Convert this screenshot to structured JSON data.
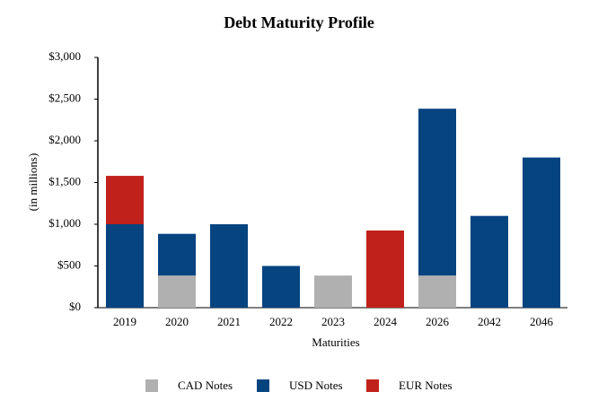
{
  "chart_data": {
    "type": "stacked_bar",
    "title": "Debt Maturity Profile",
    "y_label": "(in millions)",
    "x_label": "Maturities",
    "categories": [
      "2019",
      "2020",
      "2021",
      "2022",
      "2023",
      "2024",
      "2026",
      "2042",
      "2046"
    ],
    "series": [
      {
        "name": "CAD Notes",
        "color": "#b0b0b0",
        "values": [
          null,
          385,
          null,
          null,
          385,
          null,
          385,
          null,
          null
        ]
      },
      {
        "name": "USD Notes",
        "color": "#064480",
        "values": [
          1000,
          500,
          1000,
          500,
          null,
          null,
          2000,
          1100,
          1800
        ]
      },
      {
        "name": "EUR Notes",
        "color": "#c0211a",
        "values": [
          580,
          null,
          null,
          null,
          null,
          925,
          null,
          null,
          null
        ]
      }
    ],
    "ylim": [
      0,
      3000
    ],
    "yticks": [
      {
        "value": 0,
        "label": "$0"
      },
      {
        "value": 500,
        "label": "$500"
      },
      {
        "value": 1000,
        "label": "$1,000"
      },
      {
        "value": 1500,
        "label": "$1,500"
      },
      {
        "value": 2000,
        "label": "$2,000"
      },
      {
        "value": 2500,
        "label": "$2,500"
      },
      {
        "value": 3000,
        "label": "$3,000"
      }
    ],
    "legend": "bottom"
  }
}
